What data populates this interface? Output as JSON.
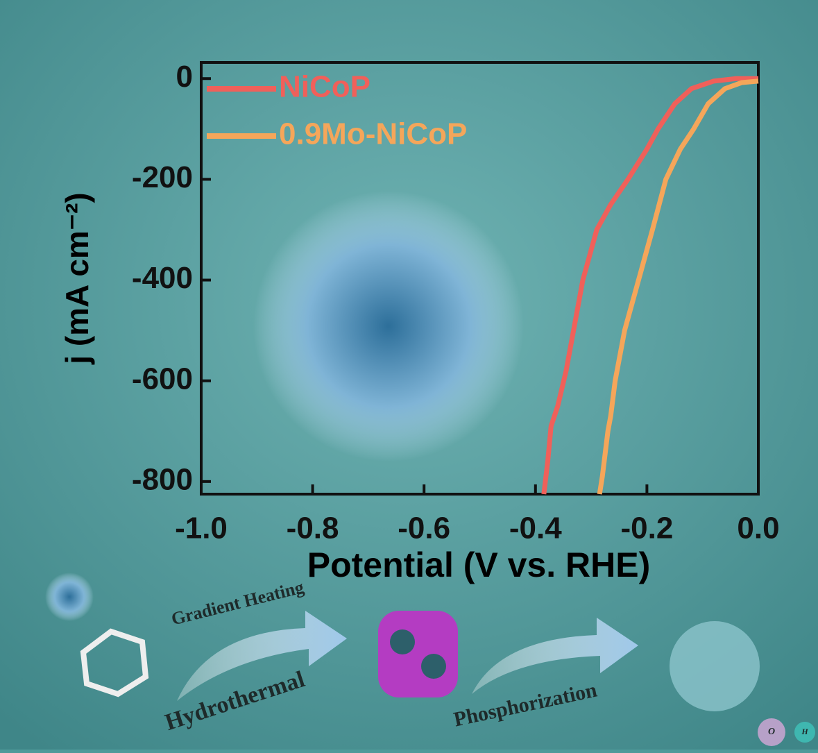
{
  "chart_data": {
    "type": "line",
    "xlabel": "Potential (V vs. RHE)",
    "ylabel": "j (mA cm⁻²)",
    "xlim": [
      -1.0,
      0.0
    ],
    "xticks": [
      {
        "value": -1.0,
        "label": "-1.0"
      },
      {
        "value": -0.8,
        "label": "-0.8"
      },
      {
        "value": -0.6,
        "label": "-0.6"
      },
      {
        "value": -0.4,
        "label": "-0.4"
      },
      {
        "value": -0.2,
        "label": "-0.2"
      },
      {
        "value": 0.0,
        "label": "0.0"
      }
    ],
    "ylim": [
      -825,
      32
    ],
    "yticks": [
      -800,
      -600,
      -400,
      -200,
      0
    ],
    "legend": "upper-left",
    "series": [
      {
        "name": "NiCoP",
        "color": "#f0605a",
        "x": [
          -0.385,
          -0.378,
          -0.372,
          -0.36,
          -0.345,
          -0.33,
          -0.315,
          -0.29,
          -0.265,
          -0.234,
          -0.2,
          -0.18,
          -0.15,
          -0.12,
          -0.08,
          -0.04,
          0.0
        ],
        "values": [
          -825,
          -760,
          -690,
          -650,
          -580,
          -490,
          -400,
          -300,
          -250,
          -200,
          -140,
          -100,
          -50,
          -20,
          -5,
          0,
          0
        ]
      },
      {
        "name": "0.9Mo-NiCoP",
        "color": "#f5a65a",
        "x": [
          -0.285,
          -0.28,
          -0.27,
          -0.265,
          -0.257,
          -0.24,
          -0.215,
          -0.19,
          -0.166,
          -0.14,
          -0.116,
          -0.09,
          -0.06,
          -0.03,
          0.0
        ],
        "values": [
          -825,
          -790,
          -700,
          -670,
          -600,
          -500,
          -400,
          -300,
          -200,
          -140,
          -100,
          -50,
          -20,
          -8,
          -5
        ]
      }
    ],
    "annotations": [
      "Gradient Heating",
      "Hydrothermal",
      "Phosphorization",
      "O",
      "H"
    ]
  }
}
